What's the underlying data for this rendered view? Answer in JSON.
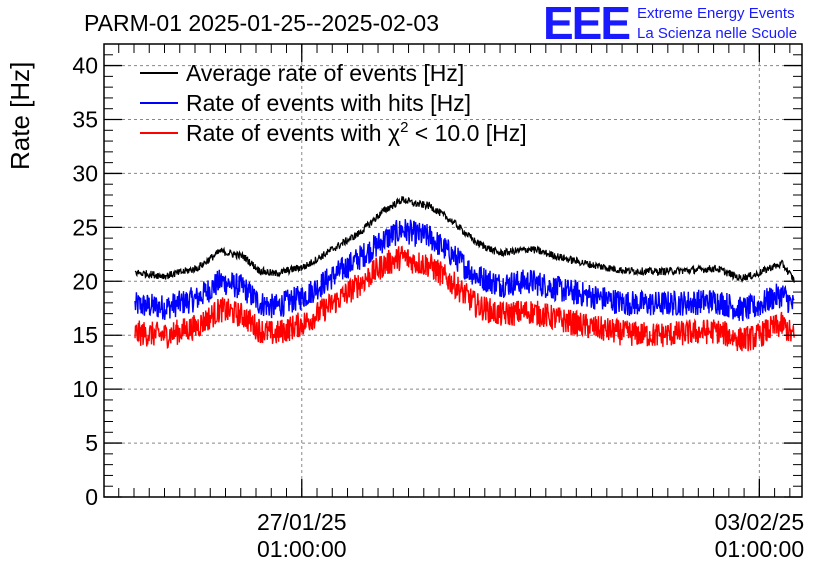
{
  "title": "PARM-01 2025-01-25--2025-02-03",
  "brand": {
    "logo": "EEE",
    "line1": "Extreme Energy Events",
    "line2": "La Scienza nelle Scuole",
    "color": "#1a1aff"
  },
  "chart_data": {
    "type": "line",
    "title": "PARM-01 2025-01-25--2025-02-03",
    "xlabel": "",
    "ylabel": "Rate [Hz]",
    "ylim": [
      0,
      42
    ],
    "xlim_days": [
      0,
      9
    ],
    "x_start": "2025-01-25",
    "x_end": "2025-02-03",
    "grid": true,
    "legend_position": "top-left",
    "y_ticks": [
      "0",
      "5",
      "10",
      "15",
      "20",
      "25",
      "30",
      "35",
      "40"
    ],
    "x_ticks": [
      {
        "day": 2.55,
        "date": "27/01/25",
        "time": "01:00:00"
      },
      {
        "day": 8.45,
        "date": "03/02/25",
        "time": "01:00:00"
      }
    ],
    "series": [
      {
        "name": "Average rate of events [Hz]",
        "color": "#000000",
        "noise": 0.35,
        "x": [
          0.4,
          0.8,
          1.2,
          1.5,
          1.8,
          2.0,
          2.2,
          2.6,
          3.0,
          3.3,
          3.6,
          3.85,
          4.0,
          4.2,
          4.5,
          4.8,
          5.1,
          5.5,
          5.9,
          6.3,
          6.7,
          7.1,
          7.5,
          7.9,
          8.2,
          8.4,
          8.6,
          8.75,
          8.9
        ],
        "values": [
          20.8,
          20.5,
          21.2,
          22.8,
          22.3,
          21.0,
          20.7,
          21.4,
          23.2,
          24.5,
          26.5,
          27.6,
          27.2,
          27.0,
          25.5,
          23.6,
          22.6,
          23.0,
          22.2,
          21.5,
          21.0,
          20.9,
          21.0,
          21.2,
          20.3,
          20.6,
          21.3,
          21.6,
          20.1
        ]
      },
      {
        "name": "Rate of events with hits [Hz]",
        "color": "#0000ff",
        "noise": 1.2,
        "x": [
          0.4,
          0.8,
          1.2,
          1.5,
          1.8,
          2.0,
          2.2,
          2.6,
          3.0,
          3.3,
          3.6,
          3.85,
          4.0,
          4.2,
          4.5,
          4.8,
          5.1,
          5.5,
          5.9,
          6.3,
          6.7,
          7.1,
          7.5,
          7.9,
          8.2,
          8.4,
          8.6,
          8.75,
          8.9
        ],
        "values": [
          17.8,
          17.6,
          18.4,
          20.0,
          19.4,
          18.0,
          17.6,
          18.7,
          20.7,
          22.2,
          23.8,
          24.8,
          24.4,
          24.1,
          22.4,
          20.5,
          19.7,
          20.0,
          19.2,
          18.6,
          18.0,
          17.9,
          18.0,
          18.2,
          17.4,
          17.6,
          18.4,
          18.8,
          17.6
        ]
      },
      {
        "name": "Rate of events with χ² < 10.0 [Hz]",
        "color": "#ff0000",
        "noise": 1.2,
        "x": [
          0.4,
          0.8,
          1.2,
          1.5,
          1.8,
          2.0,
          2.2,
          2.6,
          3.0,
          3.3,
          3.6,
          3.85,
          4.0,
          4.2,
          4.5,
          4.8,
          5.1,
          5.5,
          5.9,
          6.3,
          6.7,
          7.1,
          7.5,
          7.9,
          8.2,
          8.4,
          8.6,
          8.75,
          8.9
        ],
        "values": [
          15.2,
          15.0,
          15.8,
          17.4,
          16.8,
          15.5,
          15.1,
          16.2,
          18.2,
          19.8,
          21.5,
          22.3,
          21.8,
          21.5,
          19.8,
          17.8,
          16.9,
          17.2,
          16.4,
          15.7,
          15.2,
          15.0,
          15.2,
          15.4,
          14.6,
          14.8,
          15.6,
          16.0,
          14.8
        ]
      }
    ]
  },
  "legend": {
    "avg_label": "Average rate of events [Hz]",
    "hits_label": "Rate of events with hits [Hz]",
    "chi_prefix": "Rate of events with ",
    "chi_symbol": "χ",
    "chi_exponent": "2",
    "chi_suffix": " < 10.0 [Hz]"
  }
}
